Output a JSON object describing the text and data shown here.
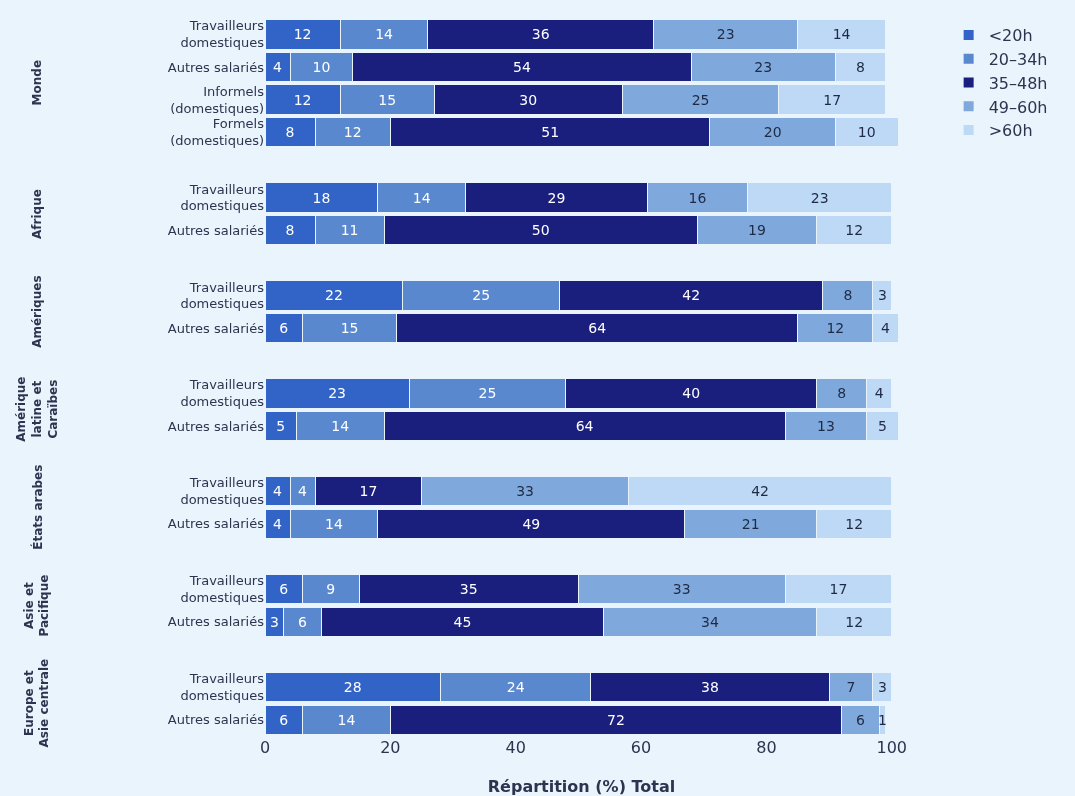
{
  "chart_data": {
    "type": "bar",
    "orientation": "horizontal",
    "stacked": true,
    "data_labels": true,
    "grid": false,
    "legend": "top right",
    "xlabel": "Répartition (%) Total",
    "xlim": [
      0,
      101
    ],
    "xticks": [
      0,
      20,
      40,
      60,
      80,
      100
    ],
    "categories": [
      "Travailleurs domestiques",
      "Autres salariés",
      "Informels (domestiques)",
      "Formels (domestiques)",
      null,
      "Travailleurs domestiques",
      "Autres salariés",
      null,
      "Travailleurs domestiques",
      "Autres salariés",
      null,
      "Travailleurs domestiques",
      "Autres salariés",
      null,
      "Travailleurs domestiques",
      "Autres salariés",
      null,
      "Travailleurs domestiques",
      "Autres salariés",
      null,
      "Travailleurs domestiques",
      "Autres salariés"
    ],
    "annotations": [
      "Monde",
      "Afrique",
      "Amériques",
      "Amérique latine et Caraïbes",
      "États arabes",
      "Asie et Pacifique",
      "Europe et Asie centrale"
    ],
    "series": [
      {
        "name": "<20h",
        "color": "#3264c8",
        "values": [
          12,
          4,
          12,
          8,
          null,
          18,
          8,
          null,
          22,
          6,
          null,
          23,
          5,
          null,
          4,
          4,
          null,
          6,
          3,
          null,
          28,
          6
        ]
      },
      {
        "name": "20–34h",
        "color": "#5a88cf",
        "values": [
          14,
          10,
          15,
          12,
          null,
          14,
          11,
          null,
          25,
          15,
          null,
          25,
          14,
          null,
          4,
          14,
          null,
          9,
          6,
          null,
          24,
          14
        ]
      },
      {
        "name": "35–48h",
        "color": "#1a1f7e",
        "values": [
          36,
          54,
          30,
          51,
          null,
          29,
          50,
          null,
          42,
          64,
          null,
          40,
          64,
          null,
          17,
          49,
          null,
          35,
          45,
          null,
          38,
          72
        ]
      },
      {
        "name": "49–60h",
        "color": "#7fa9dc",
        "values": [
          23,
          23,
          25,
          20,
          null,
          16,
          19,
          null,
          8,
          12,
          null,
          8,
          13,
          null,
          33,
          21,
          null,
          33,
          34,
          null,
          7,
          6
        ]
      },
      {
        "name": ">60h",
        "color": "#bdd9f6",
        "values": [
          14,
          8,
          17,
          10,
          null,
          23,
          12,
          null,
          3,
          4,
          null,
          4,
          5,
          null,
          42,
          12,
          null,
          17,
          12,
          null,
          3,
          1
        ]
      }
    ]
  }
}
